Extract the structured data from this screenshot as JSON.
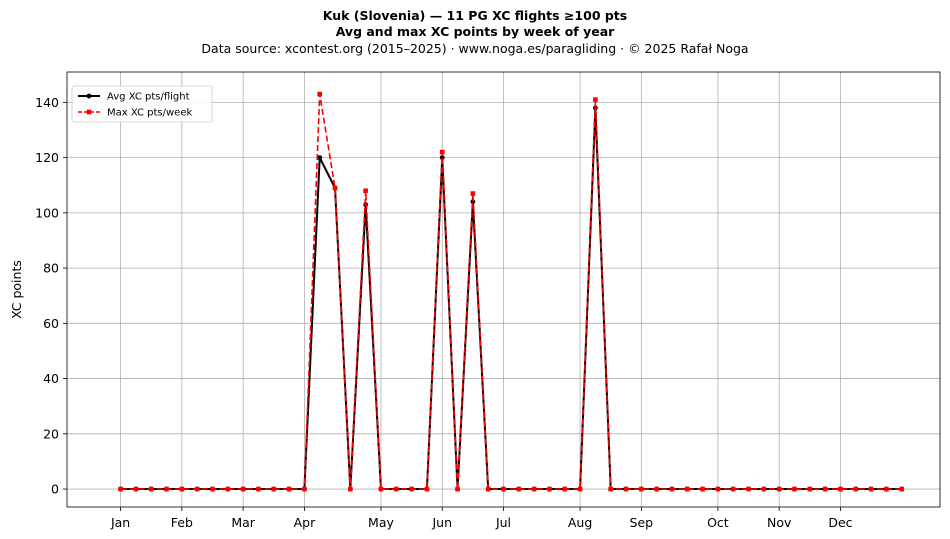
{
  "title_line1": "Kuk (Slovenia)  —  11 PG XC flights ≥100 pts",
  "title_line2": "Avg and max XC points by week of year",
  "subtitle": "Data source: xcontest.org (2015–2025)  ·  www.noga.es/paragliding  ·  © 2025 Rafał Noga",
  "chart_data": {
    "type": "line",
    "title": "Kuk (Slovenia)  —  11 PG XC flights ≥100 pts",
    "subtitle": "Avg and max XC points by week of year",
    "ylabel": "XC points",
    "xlabel": "",
    "ylim": [
      -6.5,
      151
    ],
    "xlim": [
      -2.5,
      54.5
    ],
    "grid": true,
    "legend_position": "top-left",
    "x_ticks": [
      {
        "label": "Jan",
        "week": 1
      },
      {
        "label": "Feb",
        "week": 5
      },
      {
        "label": "Mar",
        "week": 9
      },
      {
        "label": "Apr",
        "week": 13
      },
      {
        "label": "May",
        "week": 18
      },
      {
        "label": "Jun",
        "week": 22
      },
      {
        "label": "Jul",
        "week": 26
      },
      {
        "label": "Aug",
        "week": 31
      },
      {
        "label": "Sep",
        "week": 35
      },
      {
        "label": "Oct",
        "week": 40
      },
      {
        "label": "Nov",
        "week": 44
      },
      {
        "label": "Dec",
        "week": 48
      }
    ],
    "y_ticks": [
      0,
      20,
      40,
      60,
      80,
      100,
      120,
      140
    ],
    "x": [
      1,
      2,
      3,
      4,
      5,
      6,
      7,
      8,
      9,
      10,
      11,
      12,
      13,
      14,
      15,
      16,
      17,
      18,
      19,
      20,
      21,
      22,
      23,
      24,
      25,
      26,
      27,
      28,
      29,
      30,
      31,
      32,
      33,
      34,
      35,
      36,
      37,
      38,
      39,
      40,
      41,
      42,
      43,
      44,
      45,
      46,
      47,
      48,
      49,
      50,
      51,
      52
    ],
    "series": [
      {
        "name": "Avg XC pts/flight",
        "color": "#000000",
        "style": "solid",
        "marker": "circle",
        "values": [
          0,
          0,
          0,
          0,
          0,
          0,
          0,
          0,
          0,
          0,
          0,
          0,
          0,
          120,
          109,
          0,
          103,
          0,
          0,
          0,
          0,
          120,
          0,
          104,
          0,
          0,
          0,
          0,
          0,
          0,
          0,
          138,
          0,
          0,
          0,
          0,
          0,
          0,
          0,
          0,
          0,
          0,
          0,
          0,
          0,
          0,
          0,
          0,
          0,
          0,
          0,
          0
        ]
      },
      {
        "name": "Max XC pts/week",
        "color": "#ff0000",
        "style": "dashed",
        "marker": "square",
        "values": [
          0,
          0,
          0,
          0,
          0,
          0,
          0,
          0,
          0,
          0,
          0,
          0,
          0,
          143,
          109,
          0,
          108,
          0,
          0,
          0,
          0,
          122,
          0,
          107,
          0,
          0,
          0,
          0,
          0,
          0,
          0,
          141,
          0,
          0,
          0,
          0,
          0,
          0,
          0,
          0,
          0,
          0,
          0,
          0,
          0,
          0,
          0,
          0,
          0,
          0,
          0,
          0
        ]
      }
    ]
  }
}
